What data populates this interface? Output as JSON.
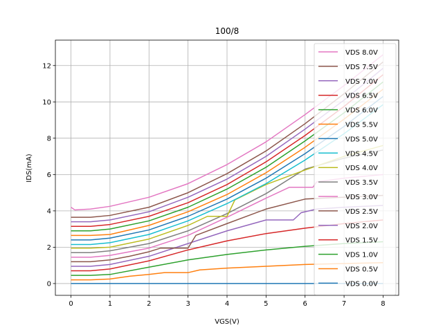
{
  "chart_data": {
    "type": "line",
    "title": "100/8",
    "xlabel": "VGS(V)",
    "ylabel": "IDS(mA)",
    "xlim": [
      -0.4,
      8.4
    ],
    "ylim": [
      -0.65,
      13.4
    ],
    "xticks": [
      0,
      1,
      2,
      3,
      4,
      5,
      6,
      7,
      8
    ],
    "yticks": [
      0,
      2,
      4,
      6,
      8,
      10,
      12
    ],
    "grid": true,
    "legend_position": "upper-right",
    "series": [
      {
        "name": "VDS 8.0V",
        "color": "#e377c2",
        "x": [
          0,
          0.1,
          0.5,
          1,
          2,
          3,
          4,
          5,
          6,
          7,
          8
        ],
        "y": [
          4.2,
          4.05,
          4.1,
          4.25,
          4.75,
          5.5,
          6.55,
          7.8,
          9.3,
          10.9,
          12.6
        ]
      },
      {
        "name": "VDS 7.5V",
        "color": "#8c564b",
        "x": [
          0,
          0.5,
          1,
          2,
          3,
          4,
          5,
          6,
          7,
          8
        ],
        "y": [
          3.65,
          3.65,
          3.75,
          4.2,
          5.0,
          6.05,
          7.3,
          8.8,
          10.45,
          12.2
        ]
      },
      {
        "name": "VDS 7.0V",
        "color": "#9467bd",
        "x": [
          0,
          0.5,
          1,
          2,
          3,
          4,
          5,
          6,
          7,
          8
        ],
        "y": [
          3.4,
          3.4,
          3.5,
          3.95,
          4.75,
          5.75,
          7.0,
          8.5,
          10.1,
          11.85
        ]
      },
      {
        "name": "VDS 6.5V",
        "color": "#d62728",
        "x": [
          0,
          0.5,
          1,
          2,
          3,
          4,
          5,
          6,
          7,
          8
        ],
        "y": [
          3.15,
          3.15,
          3.25,
          3.7,
          4.45,
          5.45,
          6.7,
          8.15,
          9.75,
          11.5
        ]
      },
      {
        "name": "VDS 6.0V",
        "color": "#2ca02c",
        "x": [
          0,
          0.5,
          1,
          2,
          3,
          4,
          5,
          6,
          7,
          8
        ],
        "y": [
          2.9,
          2.9,
          3.0,
          3.45,
          4.2,
          5.2,
          6.4,
          7.85,
          9.4,
          11.1
        ]
      },
      {
        "name": "VDS 5.5V",
        "color": "#ff7f0e",
        "x": [
          0,
          0.5,
          1,
          2,
          3,
          4,
          5,
          6,
          7,
          8
        ],
        "y": [
          2.65,
          2.65,
          2.7,
          3.2,
          3.95,
          4.9,
          6.1,
          7.5,
          9.05,
          10.7
        ]
      },
      {
        "name": "VDS 5.0V",
        "color": "#1f77b4",
        "x": [
          0,
          0.5,
          1,
          2,
          3,
          4,
          5,
          6,
          7,
          8
        ],
        "y": [
          2.4,
          2.4,
          2.5,
          2.95,
          3.7,
          4.65,
          5.8,
          7.15,
          8.65,
          10.3
        ]
      },
      {
        "name": "VDS 4.5V",
        "color": "#17becf",
        "x": [
          0,
          0.5,
          1,
          2,
          3,
          4,
          5,
          6,
          7,
          8
        ],
        "y": [
          2.15,
          2.15,
          2.25,
          2.7,
          3.45,
          4.4,
          5.5,
          6.8,
          8.25,
          9.85
        ]
      },
      {
        "name": "VDS 4.0V",
        "color": "#bcbd22",
        "x": [
          0,
          0.5,
          1,
          2,
          3,
          3.4,
          3.5,
          4.0,
          4.2,
          5,
          6,
          7,
          8
        ],
        "y": [
          1.95,
          1.95,
          2.0,
          2.45,
          3.2,
          3.6,
          3.7,
          3.7,
          4.6,
          5.45,
          6.25,
          7.0,
          7.6
        ]
      },
      {
        "name": "VDS 3.5V",
        "color": "#7f7f7f",
        "x": [
          0,
          0.5,
          1,
          2,
          3,
          4,
          5,
          6,
          7,
          8
        ],
        "y": [
          1.7,
          1.7,
          1.8,
          2.2,
          2.9,
          3.85,
          4.95,
          6.3,
          6.9,
          7.35
        ]
      },
      {
        "name": "VDS 3.0V",
        "color": "#e377c2",
        "x": [
          0,
          0.5,
          1,
          2,
          3,
          4,
          5,
          5.6,
          6.2,
          6.3,
          7,
          8
        ],
        "y": [
          1.45,
          1.45,
          1.55,
          1.95,
          2.65,
          3.65,
          4.7,
          5.3,
          5.3,
          5.6,
          5.8,
          6.0
        ]
      },
      {
        "name": "VDS 2.5V",
        "color": "#8c564b",
        "x": [
          0,
          0.5,
          1,
          1.5,
          2,
          2.3,
          2.5,
          3.0,
          3.2,
          4,
          5,
          6,
          7,
          8
        ],
        "y": [
          1.2,
          1.2,
          1.3,
          1.5,
          1.75,
          1.95,
          1.95,
          1.95,
          2.65,
          3.3,
          4.1,
          4.65,
          4.75,
          4.85
        ]
      },
      {
        "name": "VDS 2.0V",
        "color": "#9467bd",
        "x": [
          0,
          0.5,
          1,
          2,
          3,
          4,
          5,
          5.7,
          5.9,
          6.3,
          7,
          8
        ],
        "y": [
          0.95,
          0.95,
          1.05,
          1.5,
          2.2,
          2.9,
          3.5,
          3.5,
          3.9,
          4.1,
          4.2,
          4.3
        ]
      },
      {
        "name": "VDS 1.5V",
        "color": "#d62728",
        "x": [
          0,
          0.5,
          1,
          2,
          3,
          4,
          5,
          6,
          7,
          8
        ],
        "y": [
          0.7,
          0.7,
          0.8,
          1.25,
          1.85,
          2.35,
          2.75,
          3.05,
          3.3,
          3.5
        ]
      },
      {
        "name": "VDS 1.0V",
        "color": "#2ca02c",
        "x": [
          0,
          0.5,
          1,
          2,
          3,
          4,
          5,
          6,
          7,
          8
        ],
        "y": [
          0.45,
          0.45,
          0.5,
          0.9,
          1.3,
          1.6,
          1.85,
          2.05,
          2.2,
          2.3
        ]
      },
      {
        "name": "VDS 0.5V",
        "color": "#ff7f0e",
        "x": [
          0,
          0.5,
          1,
          1.5,
          2,
          2.4,
          3.0,
          3.3,
          4,
          5,
          6,
          7,
          8
        ],
        "y": [
          0.2,
          0.2,
          0.25,
          0.4,
          0.5,
          0.6,
          0.6,
          0.75,
          0.85,
          0.95,
          1.05,
          1.1,
          1.15
        ]
      },
      {
        "name": "VDS 0.0V",
        "color": "#1f77b4",
        "x": [
          0,
          8
        ],
        "y": [
          0,
          0
        ]
      }
    ]
  }
}
